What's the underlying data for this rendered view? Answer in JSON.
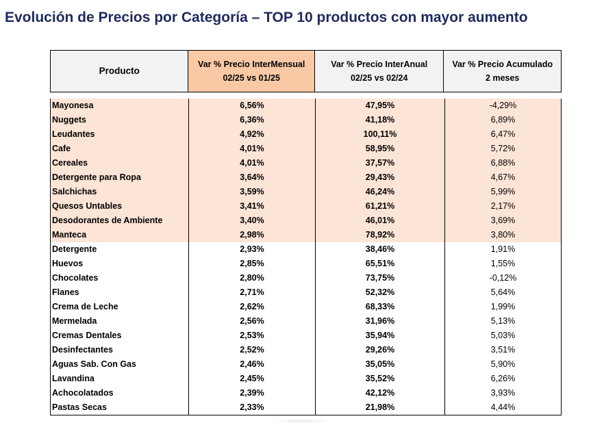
{
  "title": "Evolución de Precios por Categoría – TOP 10 productos con mayor aumento",
  "headers": {
    "producto": "Producto",
    "intermensual_l1": "Var % Precio InterMensual",
    "intermensual_l2": "02/25 vs 01/25",
    "interanual_l1": "Var % Precio InterAnual",
    "interanual_l2": "02/25 vs 02/24",
    "acumulado_l1": "Var % Precio Acumulado",
    "acumulado_l2": "2 meses"
  },
  "colors": {
    "title": "#1f2a5c",
    "highlight_header": "#f9c9a6",
    "highlight_rows": "#fce4d6"
  },
  "rows": [
    {
      "producto": "Mayonesa",
      "intermensual": "6,56%",
      "interanual": "47,95%",
      "acumulado": "-4,29%",
      "highlight": true
    },
    {
      "producto": "Nuggets",
      "intermensual": "6,36%",
      "interanual": "41,18%",
      "acumulado": "6,89%",
      "highlight": true
    },
    {
      "producto": "Leudantes",
      "intermensual": "4,92%",
      "interanual": "100,11%",
      "acumulado": "6,47%",
      "highlight": true
    },
    {
      "producto": "Cafe",
      "intermensual": "4,01%",
      "interanual": "58,95%",
      "acumulado": "5,72%",
      "highlight": true
    },
    {
      "producto": "Cereales",
      "intermensual": "4,01%",
      "interanual": "37,57%",
      "acumulado": "6,88%",
      "highlight": true
    },
    {
      "producto": "Detergente para Ropa",
      "intermensual": "3,64%",
      "interanual": "29,43%",
      "acumulado": "4,67%",
      "highlight": true
    },
    {
      "producto": "Salchichas",
      "intermensual": "3,59%",
      "interanual": "46,24%",
      "acumulado": "5,99%",
      "highlight": true
    },
    {
      "producto": "Quesos Untables",
      "intermensual": "3,41%",
      "interanual": "61,21%",
      "acumulado": "2,17%",
      "highlight": true
    },
    {
      "producto": "Desodorantes de Ambiente",
      "intermensual": "3,40%",
      "interanual": "46,01%",
      "acumulado": "3,69%",
      "highlight": true
    },
    {
      "producto": "Manteca",
      "intermensual": "2,98%",
      "interanual": "78,92%",
      "acumulado": "3,80%",
      "highlight": true
    },
    {
      "producto": "Detergente",
      "intermensual": "2,93%",
      "interanual": "38,46%",
      "acumulado": "1,91%",
      "highlight": false
    },
    {
      "producto": "Huevos",
      "intermensual": "2,85%",
      "interanual": "65,51%",
      "acumulado": "1,55%",
      "highlight": false
    },
    {
      "producto": "Chocolates",
      "intermensual": "2,80%",
      "interanual": "73,75%",
      "acumulado": "-0,12%",
      "highlight": false
    },
    {
      "producto": "Flanes",
      "intermensual": "2,71%",
      "interanual": "52,32%",
      "acumulado": "5,64%",
      "highlight": false
    },
    {
      "producto": "Crema de Leche",
      "intermensual": "2,62%",
      "interanual": "68,33%",
      "acumulado": "1,99%",
      "highlight": false
    },
    {
      "producto": "Mermelada",
      "intermensual": "2,56%",
      "interanual": "31,96%",
      "acumulado": "5,13%",
      "highlight": false
    },
    {
      "producto": "Cremas Dentales",
      "intermensual": "2,53%",
      "interanual": "35,94%",
      "acumulado": "5,03%",
      "highlight": false
    },
    {
      "producto": "Desinfectantes",
      "intermensual": "2,52%",
      "interanual": "29,26%",
      "acumulado": "3,51%",
      "highlight": false
    },
    {
      "producto": "Aguas Sab. Con Gas",
      "intermensual": "2,46%",
      "interanual": "35,05%",
      "acumulado": "5,90%",
      "highlight": false
    },
    {
      "producto": "Lavandina",
      "intermensual": "2,45%",
      "interanual": "35,52%",
      "acumulado": "6,26%",
      "highlight": false
    },
    {
      "producto": "Achocolatados",
      "intermensual": "2,39%",
      "interanual": "42,12%",
      "acumulado": "3,93%",
      "highlight": false
    },
    {
      "producto": "Pastas Secas",
      "intermensual": "2,33%",
      "interanual": "21,98%",
      "acumulado": "4,44%",
      "highlight": false
    }
  ]
}
